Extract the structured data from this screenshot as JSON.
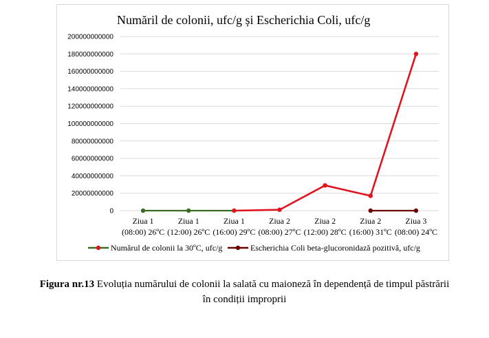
{
  "chart_data": {
    "type": "line",
    "title": "Număril de colonii, ufc/g și Escherichia Coli, ufc/g",
    "xlabel": "",
    "ylabel": "",
    "ylim": [
      0,
      200000000000
    ],
    "yticks": [
      "200000000000",
      "180000000000",
      "160000000000",
      "140000000000",
      "120000000000",
      "100000000000",
      "80000000000",
      "60000000000",
      "40000000000",
      "20000000000",
      "0"
    ],
    "categories": [
      [
        "Ziua 1",
        "(08:00) 26ºC"
      ],
      [
        "Ziua 1",
        "(12:00) 26ºC"
      ],
      [
        "Ziua 1",
        "(16:00) 29ºC"
      ],
      [
        "Ziua 2",
        "(08:00) 27ºC"
      ],
      [
        "Ziua 2",
        "(12:00) 28ºC"
      ],
      [
        "Ziua 2",
        "(16:00)  31ºC"
      ],
      [
        "Ziua 3",
        "(08:00) 24ºC"
      ]
    ],
    "series": [
      {
        "name": "Numărul de colonii la 30ºC, ufc/g",
        "color": "#e0141e",
        "values": [
          0,
          0,
          0,
          1000000000,
          29000000000,
          17000000000,
          180000000000
        ]
      },
      {
        "name": "Escherichia Coli beta-glucoronidază pozitivă, ufc/g",
        "color": "#6b0000",
        "values": [
          null,
          null,
          null,
          null,
          null,
          0,
          0
        ]
      }
    ],
    "zero_segment_color": "#3a6b23",
    "grid": true,
    "legend": "bottom"
  },
  "caption": {
    "label": "Figura nr.13",
    "text": " Evoluția numărului de colonii la salată cu maioneză în dependență de timpul păstrării",
    "line2": "în condiții improprii"
  }
}
